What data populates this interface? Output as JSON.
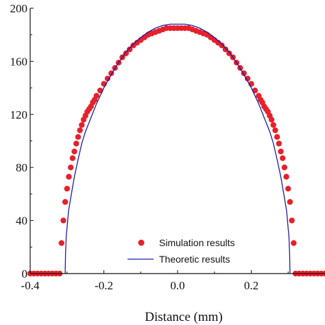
{
  "chart_data": {
    "type": "scatter",
    "title": "",
    "xlabel": "Distance (mm)",
    "ylabel": "",
    "xlim": [
      -0.4,
      0.4
    ],
    "ylim": [
      0,
      200
    ],
    "xticks": [
      -0.4,
      -0.2,
      0.0,
      0.2
    ],
    "xtick_labels": [
      "-0.4",
      "-0.2",
      "0.0",
      "0.2"
    ],
    "yticks": [
      0,
      40,
      80,
      120,
      160,
      200
    ],
    "ytick_labels": [
      "0",
      "40",
      "80",
      "120",
      "160",
      "200"
    ],
    "grid": false,
    "legend_position": "bottom-center",
    "series": [
      {
        "name": "Simulation results",
        "kind": "markers",
        "color": "#e8202a",
        "x": [
          -0.4,
          -0.39,
          -0.38,
          -0.37,
          -0.36,
          -0.35,
          -0.34,
          -0.33,
          -0.32,
          -0.315,
          -0.31,
          -0.305,
          -0.3,
          -0.295,
          -0.29,
          -0.285,
          -0.28,
          -0.275,
          -0.27,
          -0.265,
          -0.26,
          -0.255,
          -0.25,
          -0.245,
          -0.24,
          -0.235,
          -0.23,
          -0.225,
          -0.22,
          -0.21,
          -0.2,
          -0.19,
          -0.18,
          -0.17,
          -0.16,
          -0.15,
          -0.14,
          -0.13,
          -0.12,
          -0.11,
          -0.1,
          -0.09,
          -0.08,
          -0.07,
          -0.06,
          -0.05,
          -0.04,
          -0.03,
          -0.02,
          -0.01,
          0.0,
          0.01,
          0.02,
          0.03,
          0.04,
          0.05,
          0.06,
          0.07,
          0.08,
          0.09,
          0.1,
          0.11,
          0.12,
          0.13,
          0.14,
          0.15,
          0.16,
          0.17,
          0.18,
          0.19,
          0.2,
          0.21,
          0.22,
          0.225,
          0.23,
          0.235,
          0.24,
          0.245,
          0.25,
          0.255,
          0.26,
          0.265,
          0.27,
          0.275,
          0.28,
          0.285,
          0.29,
          0.295,
          0.3,
          0.305,
          0.31,
          0.315,
          0.32,
          0.33,
          0.34,
          0.35,
          0.36,
          0.37,
          0.38,
          0.39,
          0.4
        ],
        "y": [
          0,
          0,
          0,
          0,
          0,
          0,
          0,
          0,
          0,
          23,
          40,
          54,
          64,
          73,
          80,
          87,
          92,
          98,
          103,
          108,
          112,
          116,
          119,
          122,
          124,
          126,
          129,
          131,
          134,
          138,
          143,
          147,
          151,
          155,
          159,
          163,
          166,
          169,
          172,
          174,
          176,
          178,
          180,
          181,
          182,
          183,
          184,
          185,
          185,
          185,
          185,
          185,
          185,
          185,
          184,
          183,
          182,
          181,
          180,
          178,
          176,
          174,
          172,
          169,
          166,
          163,
          159,
          155,
          151,
          147,
          143,
          138,
          134,
          131,
          129,
          126,
          124,
          122,
          119,
          116,
          112,
          108,
          103,
          98,
          92,
          87,
          80,
          73,
          64,
          54,
          40,
          23,
          0,
          0,
          0,
          0,
          0,
          0,
          0,
          0,
          0
        ]
      },
      {
        "name": "Theoretic results",
        "kind": "line",
        "color": "#1a1aa8",
        "x": [
          -0.305,
          -0.304,
          -0.302,
          -0.3,
          -0.296,
          -0.29,
          -0.28,
          -0.27,
          -0.26,
          -0.25,
          -0.24,
          -0.22,
          -0.2,
          -0.18,
          -0.16,
          -0.14,
          -0.12,
          -0.1,
          -0.08,
          -0.06,
          -0.04,
          -0.02,
          0.0,
          0.02,
          0.04,
          0.06,
          0.08,
          0.1,
          0.12,
          0.14,
          0.16,
          0.18,
          0.2,
          0.22,
          0.24,
          0.25,
          0.26,
          0.27,
          0.28,
          0.29,
          0.296,
          0.3,
          0.302,
          0.304,
          0.305
        ],
        "y": [
          0,
          15,
          29,
          34,
          47,
          57,
          73,
          86,
          98,
          107,
          114,
          128,
          140,
          150,
          159,
          167,
          173,
          178,
          182,
          185,
          187,
          188,
          188,
          188,
          187,
          185,
          182,
          178,
          173,
          167,
          159,
          150,
          140,
          128,
          114,
          107,
          98,
          86,
          73,
          57,
          47,
          34,
          29,
          15,
          0
        ]
      }
    ]
  }
}
